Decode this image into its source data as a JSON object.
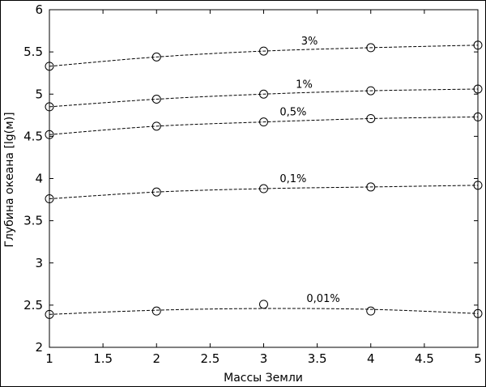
{
  "chart_data": {
    "type": "line",
    "xlabel": "Массы Земли",
    "ylabel": "Глубина океана [lg(м)]",
    "xlim": [
      1,
      5
    ],
    "ylim": [
      2,
      6
    ],
    "xticks": [
      "1",
      "1.5",
      "2",
      "2.5",
      "3",
      "3.5",
      "4",
      "4.5",
      "5"
    ],
    "yticks": [
      "2",
      "2.5",
      "3",
      "3.5",
      "4",
      "4.5",
      "5",
      "5.5",
      "6"
    ],
    "grid": false,
    "legend": "none",
    "x": [
      1,
      2,
      3,
      4,
      5
    ],
    "series": [
      {
        "name": "3%",
        "values": [
          5.33,
          5.44,
          5.51,
          5.55,
          5.58
        ],
        "trend": [
          5.33,
          5.44,
          5.51,
          5.55,
          5.58
        ]
      },
      {
        "name": "1%",
        "values": [
          4.85,
          4.94,
          5.0,
          5.04,
          5.06
        ],
        "trend": [
          4.85,
          4.94,
          5.0,
          5.04,
          5.06
        ]
      },
      {
        "name": "0,5%",
        "values": [
          4.52,
          4.62,
          4.67,
          4.71,
          4.73
        ],
        "trend": [
          4.52,
          4.62,
          4.67,
          4.71,
          4.73
        ]
      },
      {
        "name": "0,1%",
        "values": [
          3.76,
          3.84,
          3.88,
          3.9,
          3.92
        ],
        "trend": [
          3.76,
          3.84,
          3.88,
          3.9,
          3.92
        ]
      },
      {
        "name": "0,01%",
        "values": [
          2.39,
          2.43,
          2.51,
          2.43,
          2.4
        ],
        "trend": [
          2.39,
          2.44,
          2.46,
          2.45,
          2.4
        ]
      }
    ],
    "series_label_x": [
      3.35,
      3.3,
      3.15,
      3.15,
      3.4
    ]
  }
}
